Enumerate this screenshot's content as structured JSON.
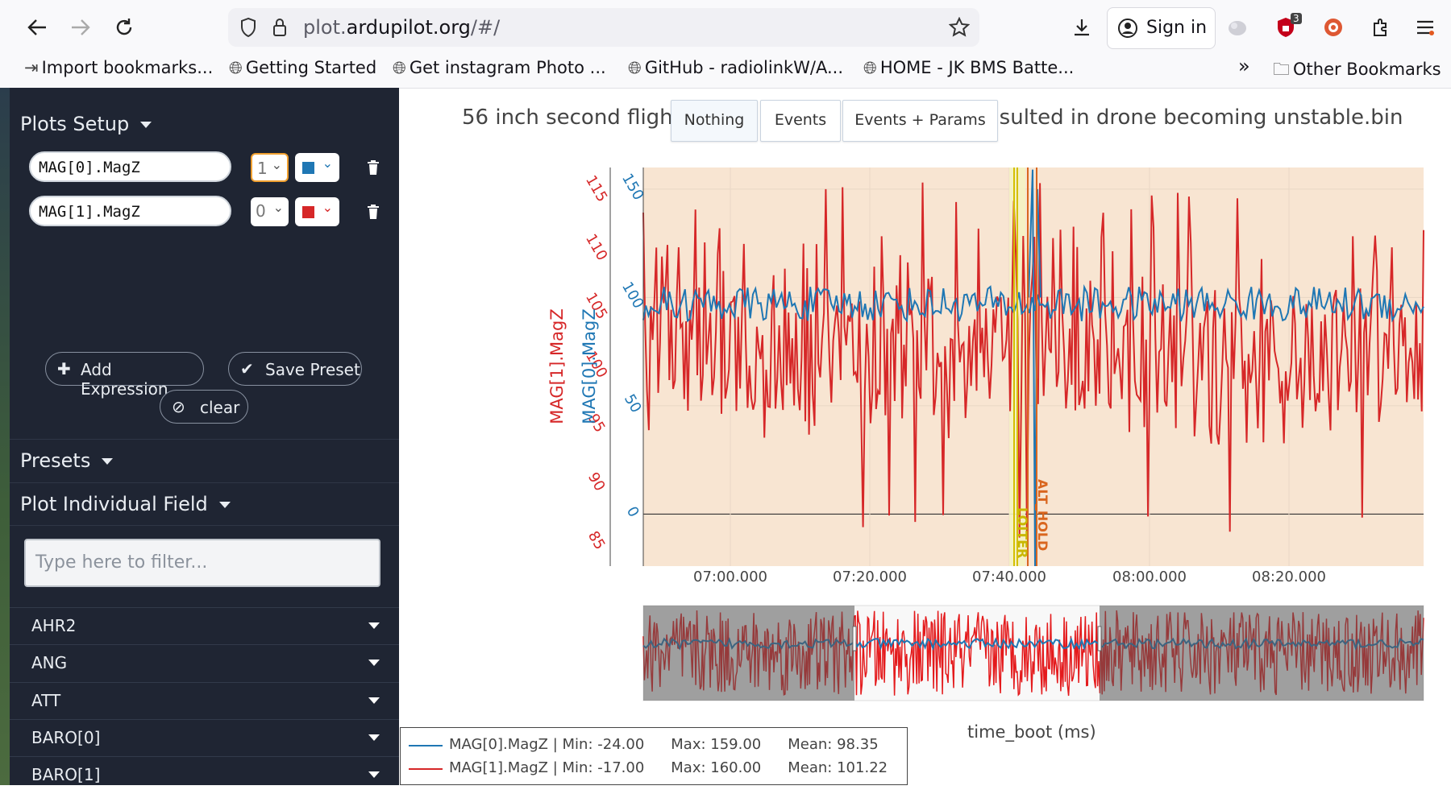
{
  "browser": {
    "url_prefix": "plot.",
    "url_domain": "ardupilot.org",
    "url_suffix": "/#/",
    "sign_in": "Sign in",
    "ext_badge": "3",
    "bookmarks": [
      "Import bookmarks...",
      "Getting Started",
      "Get instagram Photo ...",
      "GitHub - radiolinkW/A...",
      "HOME - JK BMS Batte..."
    ],
    "other_bookmarks": "Other Bookmarks"
  },
  "sidebar": {
    "plots_setup": "Plots Setup",
    "expressions": [
      {
        "expr": "MAG[0].MagZ",
        "axis": "1",
        "color": "#1f77b4"
      },
      {
        "expr": "MAG[1].MagZ",
        "axis": "0",
        "color": "#d62728"
      }
    ],
    "add_expression": "Add Expression",
    "save_preset": "Save Preset",
    "clear": "clear",
    "presets": "Presets",
    "plot_individual_field": "Plot Individual Field",
    "filter_placeholder": "Type here to filter...",
    "fields": [
      "AHR2",
      "ANG",
      "ATT",
      "BARO[0]",
      "BARO[1]"
    ]
  },
  "plot": {
    "title": "56 inch second fligh… …sulted in drone becoming unstable.bin",
    "title_left": "56 inch second fligh",
    "title_right": "sulted in drone becoming unstable.bin",
    "buttons": [
      "Nothing",
      "Events",
      "Events + Params"
    ],
    "xlabel": "time_boot (ms)",
    "legend": [
      {
        "name": "MAG[0].MagZ",
        "min": "-24.00",
        "max": "159.00",
        "mean": "98.35",
        "color": "#1f77b4"
      },
      {
        "name": "MAG[1].MagZ",
        "min": "-17.00",
        "max": "160.00",
        "mean": "101.22",
        "color": "#d62728"
      }
    ],
    "mode_labels": [
      "LOITER",
      "ALT_HOLD"
    ]
  },
  "chart_data": {
    "type": "line",
    "title": "56 inch second fligh... sulted in drone becoming unstable.bin",
    "xlabel": "time_boot (ms)",
    "ylabel": "MAG[0].MagZ",
    "ylabel2": "MAG[1].MagZ",
    "x_ticks": [
      "07:00.000",
      "07:20.000",
      "07:40.000",
      "08:00.000",
      "08:20.000"
    ],
    "y_ticks": [
      0,
      50,
      100,
      150
    ],
    "y2_ticks": [
      85,
      90,
      95,
      100,
      105,
      110,
      115
    ],
    "ylim": [
      -24,
      160
    ],
    "y2lim": [
      83,
      117
    ],
    "series": [
      {
        "name": "MAG[0].MagZ",
        "axis": "y",
        "color": "#1f77b4",
        "min": -24,
        "max": 159,
        "mean": 98.35
      },
      {
        "name": "MAG[1].MagZ",
        "axis": "y2",
        "color": "#d62728",
        "min": -17,
        "max": 160,
        "mean": 101.22
      }
    ],
    "grid": true,
    "legend": "bottom-left"
  }
}
